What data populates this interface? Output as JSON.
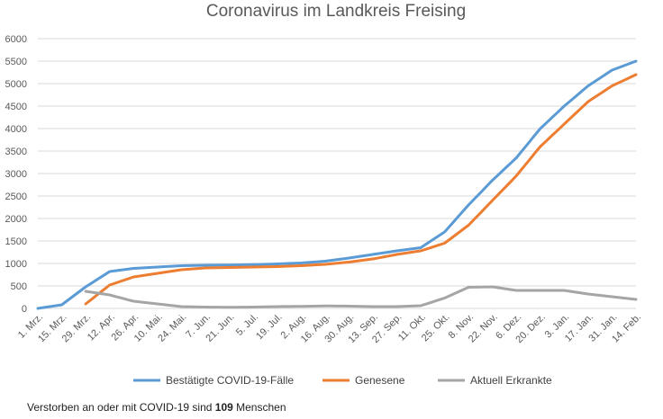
{
  "chart_data": {
    "type": "line",
    "title": "Coronavirus im Landkreis Freising",
    "ylim": [
      0,
      6000
    ],
    "ytick_labels": [
      "0",
      "500",
      "1000",
      "1500",
      "2000",
      "2500",
      "3000",
      "3500",
      "4000",
      "4500",
      "5000",
      "5500",
      "6000"
    ],
    "grid": true,
    "legend_position": "bottom",
    "x_tick_labels": [
      "1. Mrz.",
      "15. Mrz.",
      "29. Mrz.",
      "12. Apr.",
      "26. Apr.",
      "10. Mai.",
      "24. Mai.",
      "7. Jun.",
      "21. Jun.",
      "5. Jul.",
      "19. Jul.",
      "2. Aug.",
      "16. Aug.",
      "30. Aug.",
      "13. Sep.",
      "27. Sep.",
      "11. Okt.",
      "25. Okt.",
      "8. Nov.",
      "22. Nov.",
      "6. Dez.",
      "20. Dez.",
      "3. Jan.",
      "17. Jan.",
      "31. Jan.",
      "14. Feb."
    ],
    "series": [
      {
        "name": "Bestätigte COVID-19-Fälle",
        "color": "#5b9bd5",
        "values": [
          0,
          80,
          480,
          820,
          890,
          920,
          950,
          960,
          965,
          975,
          990,
          1010,
          1050,
          1120,
          1200,
          1280,
          1350,
          1700,
          2300,
          2850,
          3350,
          4000,
          4500,
          4950,
          5300,
          5500
        ]
      },
      {
        "name": "Genesene",
        "color": "#ed7d31",
        "values": [
          null,
          null,
          100,
          520,
          700,
          780,
          860,
          900,
          910,
          920,
          930,
          950,
          980,
          1030,
          1100,
          1200,
          1280,
          1450,
          1850,
          2400,
          2950,
          3600,
          4100,
          4600,
          4950,
          5200
        ]
      },
      {
        "name": "Aktuell Erkrankte",
        "color": "#a5a5a5",
        "values": [
          null,
          null,
          380,
          300,
          160,
          100,
          40,
          30,
          25,
          30,
          40,
          45,
          55,
          50,
          40,
          40,
          60,
          230,
          470,
          480,
          400,
          400,
          400,
          320,
          260,
          200
        ]
      }
    ]
  },
  "footnote": {
    "prefix": "Verstorben an oder mit COVID-19 sind ",
    "count": "109",
    "suffix": " Menschen"
  }
}
